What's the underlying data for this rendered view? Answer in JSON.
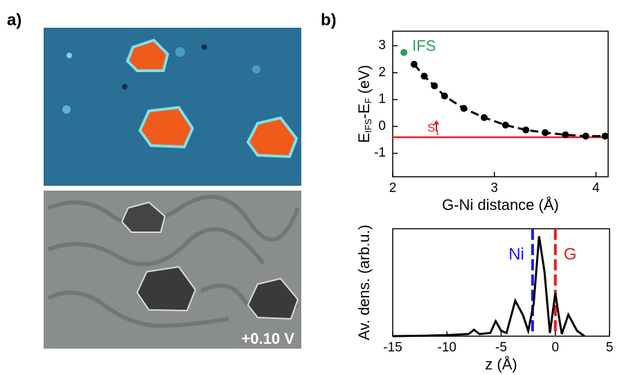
{
  "panels": {
    "a": "a)",
    "b": "b)"
  },
  "image": {
    "bias_label": "+0.10 V"
  },
  "chart_data": [
    {
      "type": "line",
      "xlabel": "G-Ni distance (Å)",
      "ylabel_parts": [
        "E",
        "IFS",
        "-E",
        "F",
        " (eV)"
      ],
      "xlim": [
        2,
        4.12
      ],
      "xticks": [
        2,
        3,
        4
      ],
      "ylim": [
        -1.87,
        3.54
      ],
      "yticks": [
        -1,
        0,
        1,
        2,
        3
      ],
      "series": [
        {
          "name": "IFS",
          "color": "#2ca05a",
          "x": [
            2.11
          ],
          "values": [
            2.75
          ]
        },
        {
          "color": "#000000",
          "style": "dashed",
          "x": [
            2.21,
            2.31,
            2.41,
            2.51,
            2.7,
            2.9,
            3.11,
            3.31,
            3.5,
            3.7,
            3.9,
            4.09
          ],
          "values": [
            2.31,
            1.87,
            1.51,
            1.13,
            0.67,
            0.33,
            0.05,
            -0.13,
            -0.23,
            -0.31,
            -0.36,
            -0.36
          ]
        }
      ],
      "hlines": [
        {
          "value": -0.4,
          "color": "#e02020",
          "label": "S",
          "label_sub": "1"
        }
      ]
    },
    {
      "type": "line",
      "xlabel": "z (Å)",
      "ylabel": "Av. dens. (arb.u.)",
      "xlim": [
        -15,
        5
      ],
      "xticks": [
        -15,
        -10,
        -5,
        0,
        5
      ],
      "ylim": [
        0,
        1
      ],
      "series": [
        {
          "color": "#000000",
          "x": [
            -15,
            -12,
            -10,
            -8,
            -7.5,
            -7,
            -6,
            -5.5,
            -5,
            -4.5,
            -3.7,
            -3,
            -2.5,
            -2,
            -1.5,
            -1,
            -0.5,
            0,
            0.3,
            0.6,
            1.2,
            2,
            2.7
          ],
          "values": [
            0,
            0.005,
            0.01,
            0.02,
            0.06,
            0.02,
            0.03,
            0.14,
            0.05,
            0.03,
            0.33,
            0.2,
            0.05,
            0.3,
            0.93,
            0.6,
            0.03,
            0.4,
            0.2,
            0.02,
            0.2,
            0.05,
            0
          ]
        }
      ],
      "vlines": [
        {
          "value": -2.1,
          "color": "#1a1aff",
          "label": "Ni"
        },
        {
          "value": 0,
          "color": "#e02020",
          "label": "G"
        }
      ]
    }
  ]
}
